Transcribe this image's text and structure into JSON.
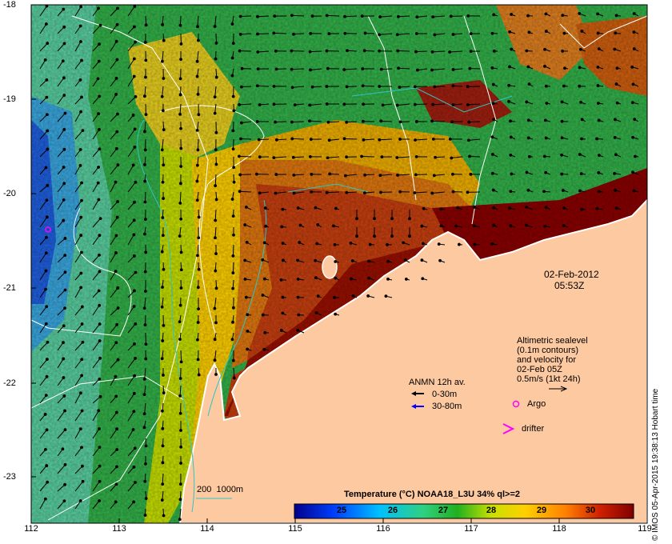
{
  "map": {
    "x_ticks": [
      "112",
      "113",
      "114",
      "115",
      "116",
      "117",
      "118",
      "119"
    ],
    "y_ticks": [
      "-18",
      "-19",
      "-20",
      "-21",
      "-22",
      "-23"
    ],
    "date": "02-Feb-2012",
    "time": "05:53Z",
    "credit": "© IMOS 05-Apr-2015 19:38:13 Hobart time",
    "altimetry_text": [
      "Altimetric sealevel",
      "(0.1m contours)",
      "and velocity for",
      "02-Feb 05Z",
      "0.5m/s (1kt 24h)"
    ],
    "anmn_title": "ANMN 12h av.",
    "anmn_items": [
      "0-30m",
      "30-80m"
    ],
    "argo_label": "Argo",
    "drifter_label": "drifter",
    "bathy_label": "200  1000m",
    "colorbar_title": "Temperature (°C) NOAA18_L3U 34% ql>=2",
    "colorbar_ticks": [
      "25",
      "26",
      "27",
      "28",
      "29",
      "30"
    ],
    "colors": {
      "land": "#fdc9a1",
      "ocean_green": "#33b24a",
      "warm_red": "#8b0000",
      "arrow_black": "#000000",
      "arrow_blue": "#0000ff",
      "argo_magenta": "#ff00ff",
      "bathy_cyan": "#2ec5c5"
    }
  }
}
